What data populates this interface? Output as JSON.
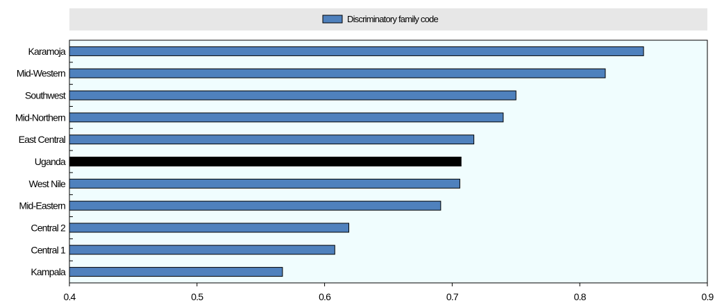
{
  "chart_data": {
    "type": "bar",
    "orientation": "horizontal",
    "categories": [
      "Karamoja",
      "Mid-Western",
      "Southwest",
      "Mid-Northern",
      "East Central",
      "Uganda",
      "West Nile",
      "Mid-Eastern",
      "Central 2",
      "Central 1",
      "Kampala"
    ],
    "series": [
      {
        "name": "Discriminatory family code",
        "values": [
          0.85,
          0.82,
          0.75,
          0.74,
          0.717,
          0.707,
          0.706,
          0.691,
          0.619,
          0.608,
          0.567
        ],
        "color": "#4f81bd"
      }
    ],
    "highlight": {
      "category": "Uganda",
      "color": "#000000"
    },
    "xlim": [
      0.4,
      0.9
    ],
    "xticks": [
      "0.4",
      "0.5",
      "0.6",
      "0.7",
      "0.8",
      "0.9"
    ],
    "legend_position": "top",
    "grid": false,
    "plot_background": "#f0fdfe",
    "legend_background": "#e7e7e7"
  }
}
